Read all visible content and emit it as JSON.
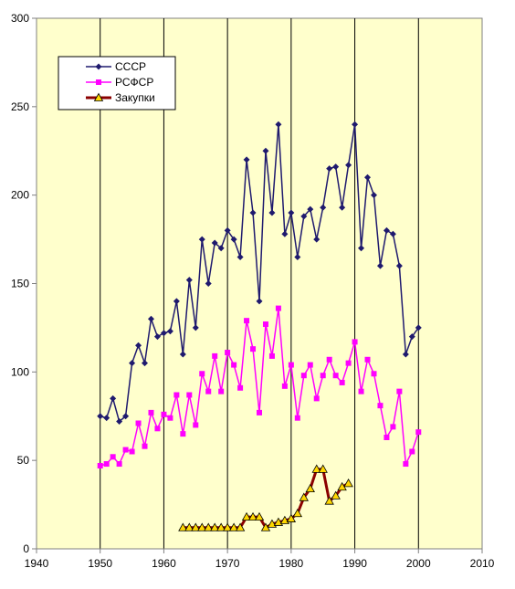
{
  "chart_data": {
    "type": "line",
    "title": "",
    "xlabel": "",
    "ylabel": "",
    "xlim": [
      1940,
      2010
    ],
    "ylim": [
      0,
      300
    ],
    "x_ticks": [
      "1940",
      "1950",
      "1960",
      "1970",
      "1980",
      "1990",
      "2000",
      "2010"
    ],
    "y_ticks": [
      "0",
      "50",
      "100",
      "150",
      "200",
      "250",
      "300"
    ],
    "grid": "vertical",
    "legend_position": "top-left",
    "plot_background": "#ffffcc",
    "series": [
      {
        "name": "СССР",
        "color": "#1f1a6e",
        "marker": "diamond",
        "points": [
          [
            1950,
            75
          ],
          [
            1951,
            74
          ],
          [
            1952,
            85
          ],
          [
            1953,
            72
          ],
          [
            1954,
            75
          ],
          [
            1955,
            105
          ],
          [
            1956,
            115
          ],
          [
            1957,
            105
          ],
          [
            1958,
            130
          ],
          [
            1959,
            120
          ],
          [
            1960,
            122
          ],
          [
            1961,
            123
          ],
          [
            1962,
            140
          ],
          [
            1963,
            110
          ],
          [
            1964,
            152
          ],
          [
            1965,
            125
          ],
          [
            1966,
            175
          ],
          [
            1967,
            150
          ],
          [
            1968,
            173
          ],
          [
            1969,
            170
          ],
          [
            1970,
            180
          ],
          [
            1971,
            175
          ],
          [
            1972,
            165
          ],
          [
            1973,
            220
          ],
          [
            1974,
            190
          ],
          [
            1975,
            140
          ],
          [
            1976,
            225
          ],
          [
            1977,
            190
          ],
          [
            1978,
            240
          ],
          [
            1979,
            178
          ],
          [
            1980,
            190
          ],
          [
            1981,
            165
          ],
          [
            1982,
            188
          ],
          [
            1983,
            192
          ],
          [
            1984,
            175
          ],
          [
            1985,
            193
          ],
          [
            1986,
            215
          ],
          [
            1987,
            216
          ],
          [
            1988,
            193
          ],
          [
            1989,
            217
          ],
          [
            1990,
            240
          ],
          [
            1991,
            170
          ],
          [
            1992,
            210
          ],
          [
            1993,
            200
          ],
          [
            1994,
            160
          ],
          [
            1995,
            180
          ],
          [
            1996,
            178
          ],
          [
            1997,
            160
          ],
          [
            1998,
            110
          ],
          [
            1999,
            120
          ],
          [
            2000,
            125
          ]
        ]
      },
      {
        "name": "РСФСР",
        "color": "#ff00ff",
        "marker": "square",
        "points": [
          [
            1950,
            47
          ],
          [
            1951,
            48
          ],
          [
            1952,
            52
          ],
          [
            1953,
            48
          ],
          [
            1954,
            56
          ],
          [
            1955,
            55
          ],
          [
            1956,
            71
          ],
          [
            1957,
            58
          ],
          [
            1958,
            77
          ],
          [
            1959,
            68
          ],
          [
            1960,
            76
          ],
          [
            1961,
            74
          ],
          [
            1962,
            87
          ],
          [
            1963,
            65
          ],
          [
            1964,
            87
          ],
          [
            1965,
            70
          ],
          [
            1966,
            99
          ],
          [
            1967,
            89
          ],
          [
            1968,
            109
          ],
          [
            1969,
            89
          ],
          [
            1970,
            111
          ],
          [
            1971,
            104
          ],
          [
            1972,
            91
          ],
          [
            1973,
            129
          ],
          [
            1974,
            113
          ],
          [
            1975,
            77
          ],
          [
            1976,
            127
          ],
          [
            1977,
            109
          ],
          [
            1978,
            136
          ],
          [
            1979,
            92
          ],
          [
            1980,
            104
          ],
          [
            1981,
            74
          ],
          [
            1982,
            98
          ],
          [
            1983,
            104
          ],
          [
            1984,
            85
          ],
          [
            1985,
            98
          ],
          [
            1986,
            107
          ],
          [
            1987,
            98
          ],
          [
            1988,
            94
          ],
          [
            1989,
            105
          ],
          [
            1990,
            117
          ],
          [
            1991,
            89
          ],
          [
            1992,
            107
          ],
          [
            1993,
            99
          ],
          [
            1994,
            81
          ],
          [
            1995,
            63
          ],
          [
            1996,
            69
          ],
          [
            1997,
            89
          ],
          [
            1998,
            48
          ],
          [
            1999,
            55
          ],
          [
            2000,
            66
          ]
        ]
      },
      {
        "name": "Закупки",
        "color": "#8b0000",
        "marker": "triangle",
        "points": [
          [
            1963,
            12
          ],
          [
            1964,
            12
          ],
          [
            1965,
            12
          ],
          [
            1966,
            12
          ],
          [
            1967,
            12
          ],
          [
            1968,
            12
          ],
          [
            1969,
            12
          ],
          [
            1970,
            12
          ],
          [
            1971,
            12
          ],
          [
            1972,
            12
          ],
          [
            1973,
            18
          ],
          [
            1974,
            18
          ],
          [
            1975,
            18
          ],
          [
            1976,
            12
          ],
          [
            1977,
            14
          ],
          [
            1978,
            15
          ],
          [
            1979,
            16
          ],
          [
            1980,
            17
          ],
          [
            1981,
            20
          ],
          [
            1982,
            29
          ],
          [
            1983,
            34
          ],
          [
            1984,
            45
          ],
          [
            1985,
            45
          ],
          [
            1986,
            27
          ],
          [
            1987,
            30
          ],
          [
            1988,
            35
          ],
          [
            1989,
            37
          ]
        ]
      }
    ]
  }
}
